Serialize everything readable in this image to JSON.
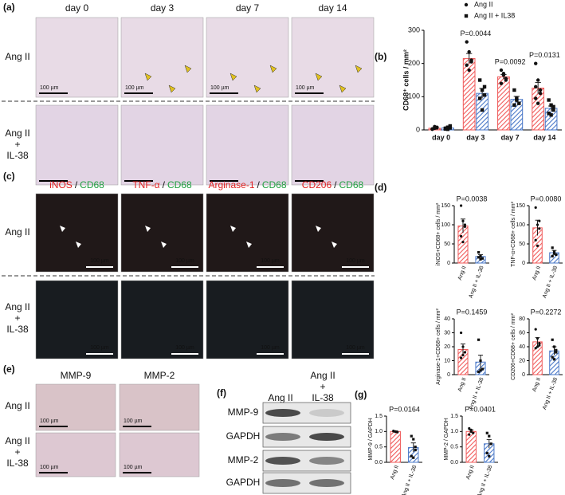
{
  "panel_labels": [
    "(a)",
    "(b)",
    "(c)",
    "(d)",
    "(e)",
    "(f)",
    "(g)"
  ],
  "scale_bar": "100 µm",
  "panel_a": {
    "columns": [
      "day 0",
      "day 3",
      "day 7",
      "day 14"
    ],
    "rows": [
      [
        "Ang II"
      ],
      [
        "Ang II",
        "+",
        "IL-38"
      ]
    ]
  },
  "panel_c": {
    "columns": [
      [
        "iNOS",
        "CD68"
      ],
      [
        "TNF-α",
        "CD68"
      ],
      [
        "Arginase-1",
        "CD68"
      ],
      [
        "CD206",
        "CD68"
      ]
    ],
    "separator": "/",
    "rows": [
      [
        "Ang II"
      ],
      [
        "Ang II",
        "+",
        "IL-38"
      ]
    ]
  },
  "panel_e": {
    "columns": [
      "MMP-9",
      "MMP-2"
    ],
    "rows": [
      [
        "Ang II"
      ],
      [
        "Ang II",
        "+",
        "IL-38"
      ]
    ]
  },
  "panel_f": {
    "columns": [
      [
        "Ang II"
      ],
      [
        "Ang II",
        "+",
        "IL-38"
      ]
    ],
    "rows": [
      "MMP-9",
      "GAPDH",
      "MMP-2",
      "GAPDH"
    ]
  },
  "chart_data": [
    {
      "type": "bar",
      "ylabel": "CD68⁺ cells / mm²",
      "categories": [
        "day 0",
        "day 3",
        "day 7",
        "day 14"
      ],
      "ylim": [
        0,
        300
      ],
      "yticks": [
        0,
        100,
        200,
        300
      ],
      "p_values": [
        null,
        "P=0.0044",
        "P=0.0092",
        "P=0.0131"
      ],
      "legend": "top-right",
      "series": [
        {
          "name": "Ang II",
          "color": "#f05a5a",
          "marker": "circle",
          "values": [
            5,
            215,
            160,
            126
          ],
          "errors": [
            2,
            15,
            7,
            17
          ],
          "points": [
            [
              2,
              5,
              8,
              3,
              10,
              6
            ],
            [
              265,
              235,
              210,
              195,
              180,
              205
            ],
            [
              180,
              165,
              150,
              140,
              170,
              155
            ],
            [
              200,
              150,
              120,
              95,
              80,
              110,
              130
            ]
          ]
        },
        {
          "name": "Ang II + IL38",
          "color": "#4a78c8",
          "marker": "square",
          "values": [
            6,
            110,
            92,
            65
          ],
          "errors": [
            3,
            15,
            9,
            7
          ],
          "points": [
            [
              3,
              8,
              12,
              5,
              2,
              6
            ],
            [
              150,
              120,
              105,
              95,
              60,
              130
            ],
            [
              120,
              90,
              80,
              75,
              95
            ],
            [
              90,
              75,
              60,
              50,
              45,
              70
            ]
          ]
        }
      ]
    },
    {
      "type": "bar",
      "ylabel": "iNOS+CD68+ cells / mm²",
      "categories": [
        "Ang II",
        "Ang II + IL-38"
      ],
      "colors": [
        "#f05a5a",
        "#4a78c8"
      ],
      "markers": [
        "circle",
        "square"
      ],
      "ylim": [
        0,
        150
      ],
      "yticks": [
        0,
        50,
        100,
        150
      ],
      "p_value": "P=0.0038",
      "values": [
        97,
        17
      ],
      "errors": [
        18,
        5
      ],
      "points": [
        [
          150,
          110,
          95,
          70,
          55,
          100
        ],
        [
          28,
          18,
          12,
          15,
          10
        ]
      ]
    },
    {
      "type": "bar",
      "ylabel": "TNF-α+CD68+ cells / mm²",
      "categories": [
        "Ang II",
        "Ang II + IL-38"
      ],
      "colors": [
        "#f05a5a",
        "#4a78c8"
      ],
      "markers": [
        "circle",
        "square"
      ],
      "ylim": [
        0,
        150
      ],
      "yticks": [
        0,
        50,
        100,
        150
      ],
      "p_value": "P=0.0080",
      "values": [
        92,
        27
      ],
      "errors": [
        20,
        6
      ],
      "points": [
        [
          145,
          100,
          90,
          60,
          45,
          110
        ],
        [
          40,
          30,
          22,
          18,
          25
        ]
      ]
    },
    {
      "type": "bar",
      "ylabel": "Arginase-1+CD68+ cells / mm²",
      "categories": [
        "Ang II",
        "Ang II + IL-38"
      ],
      "colors": [
        "#f05a5a",
        "#4a78c8"
      ],
      "markers": [
        "circle",
        "square"
      ],
      "ylim": [
        0,
        40
      ],
      "yticks": [
        0,
        10,
        20,
        30,
        40
      ],
      "p_value": "P=0.1459",
      "values": [
        18,
        9
      ],
      "errors": [
        4,
        5
      ],
      "points": [
        [
          30,
          20,
          16,
          12,
          14
        ],
        [
          25,
          10,
          4,
          2,
          3
        ]
      ]
    },
    {
      "type": "bar",
      "ylabel": "CD206+CD68+ cells / mm²",
      "categories": [
        "Ang II",
        "Ang II + IL-38"
      ],
      "colors": [
        "#f05a5a",
        "#4a78c8"
      ],
      "markers": [
        "circle",
        "square"
      ],
      "ylim": [
        0,
        80
      ],
      "yticks": [
        0,
        20,
        40,
        60,
        80
      ],
      "p_value": "P=0.2272",
      "values": [
        47,
        34
      ],
      "errors": [
        6,
        6
      ],
      "points": [
        [
          65,
          52,
          45,
          38,
          40,
          42
        ],
        [
          50,
          40,
          32,
          25,
          22,
          35
        ]
      ]
    },
    {
      "type": "bar",
      "ylabel": "MMP-9 / GAPDH",
      "categories": [
        "Ang II",
        "Ang II + IL-38"
      ],
      "colors": [
        "#f05a5a",
        "#4a78c8"
      ],
      "markers": [
        "circle",
        "square"
      ],
      "ylim": [
        0,
        1.5
      ],
      "yticks": [
        {
          "value": 0,
          "label": "0.0"
        },
        0.5,
        {
          "value": 1,
          "label": "1.0"
        },
        1.5
      ],
      "p_value": "P=0.0164",
      "values": [
        1,
        0.48
      ],
      "errors": [
        0.02,
        0.15
      ],
      "points": [
        [
          1.02,
          1.0,
          0.98,
          1.01,
          0.99
        ],
        [
          0.85,
          0.75,
          0.4,
          0.2,
          0.15,
          0.5
        ]
      ]
    },
    {
      "type": "bar",
      "ylabel": "MMP-2 / GAPDH",
      "categories": [
        "Ang II",
        "Ang II + IL-38"
      ],
      "colors": [
        "#f05a5a",
        "#4a78c8"
      ],
      "markers": [
        "circle",
        "square"
      ],
      "ylim": [
        0,
        1.5
      ],
      "yticks": [
        {
          "value": 0,
          "label": "0.0"
        },
        0.5,
        {
          "value": 1,
          "label": "1.0"
        },
        1.5
      ],
      "p_value": "P=0.0401",
      "values": [
        1,
        0.6
      ],
      "errors": [
        0.05,
        0.14
      ],
      "points": [
        [
          1.1,
          1.05,
          0.95,
          0.9,
          1.0
        ],
        [
          0.95,
          0.85,
          0.6,
          0.3,
          0.2
        ]
      ]
    }
  ]
}
